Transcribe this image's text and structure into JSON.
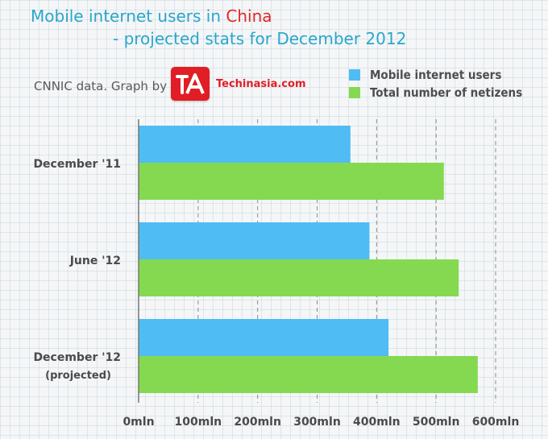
{
  "header": {
    "title_line1_prefix": "Mobile internet users in ",
    "title_line1_highlight": "China",
    "title_line2": "- projected stats for December 2012",
    "source": "CNNIC data. Graph by",
    "logo_text": "Techinasia.com"
  },
  "colors": {
    "title": "#2aa6cc",
    "highlight": "#e02828",
    "mobile_series": "#4fbcf4",
    "total_series": "#85d950",
    "logo": "#e11d25"
  },
  "chart_data": {
    "type": "bar",
    "orientation": "horizontal",
    "title": "Mobile internet users in China - projected stats for December 2012",
    "categories": [
      "December '11",
      "June '12",
      "December '12"
    ],
    "category_sublabels": [
      "",
      "",
      "(projected)"
    ],
    "series": [
      {
        "name": "Mobile internet users",
        "color": "#4fbcf4",
        "values": [
          356,
          388,
          420
        ]
      },
      {
        "name": "Total number of netizens",
        "color": "#85d950",
        "values": [
          513,
          538,
          570
        ]
      }
    ],
    "xlim": [
      0,
      600
    ],
    "xticks": [
      0,
      100,
      200,
      300,
      400,
      500,
      600
    ],
    "xtick_labels": [
      "0mln",
      "100mln",
      "200mln",
      "300mln",
      "400mln",
      "500mln",
      "600mln"
    ],
    "xlabel": "",
    "ylabel": "",
    "grid": "vertical dashed",
    "legend_position": "top-right"
  }
}
